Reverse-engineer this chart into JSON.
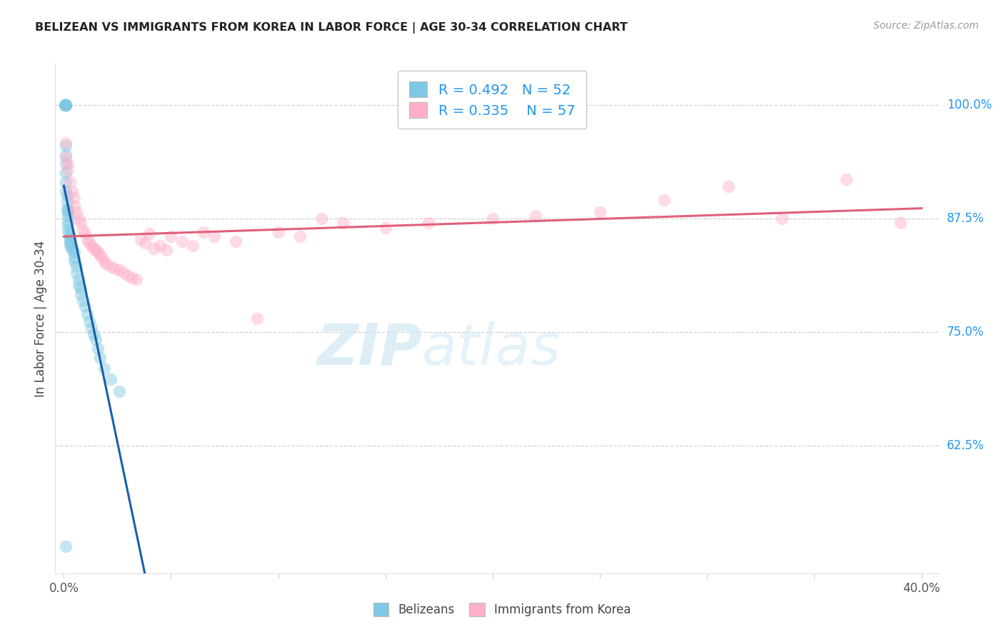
{
  "title": "BELIZEAN VS IMMIGRANTS FROM KOREA IN LABOR FORCE | AGE 30-34 CORRELATION CHART",
  "source": "Source: ZipAtlas.com",
  "ylabel": "In Labor Force | Age 30-34",
  "xlim": [
    -0.004,
    0.408
  ],
  "ylim": [
    0.485,
    1.045
  ],
  "xticks": [
    0.0,
    0.05,
    0.1,
    0.15,
    0.2,
    0.25,
    0.3,
    0.35,
    0.4
  ],
  "yticks": [
    0.625,
    0.75,
    0.875,
    1.0
  ],
  "yticklabels": [
    "62.5%",
    "75.0%",
    "87.5%",
    "100.0%"
  ],
  "R_belizean": 0.492,
  "N_belizean": 52,
  "R_korea": 0.335,
  "N_korea": 57,
  "blue_color": "#7ec8e3",
  "pink_color": "#ffb0c8",
  "blue_line_color": "#1a5fa8",
  "pink_line_color": "#e0607a",
  "accent_color": "#2196F3",
  "watermark_zip": "ZIP",
  "watermark_atlas": "atlas",
  "background_color": "#ffffff",
  "grid_color": "#cccccc",
  "belizean_x": [
    0.0005,
    0.0005,
    0.0005,
    0.001,
    0.001,
    0.001,
    0.001,
    0.001,
    0.001,
    0.001,
    0.001,
    0.001,
    0.001,
    0.0015,
    0.0015,
    0.0015,
    0.002,
    0.002,
    0.002,
    0.002,
    0.002,
    0.002,
    0.0025,
    0.003,
    0.003,
    0.003,
    0.003,
    0.003,
    0.004,
    0.004,
    0.005,
    0.005,
    0.005,
    0.006,
    0.006,
    0.007,
    0.007,
    0.008,
    0.008,
    0.009,
    0.01,
    0.011,
    0.012,
    0.013,
    0.014,
    0.015,
    0.016,
    0.017,
    0.019,
    0.022,
    0.026,
    0.001
  ],
  "belizean_y": [
    1.0,
    1.0,
    1.0,
    1.0,
    1.0,
    1.0,
    1.0,
    0.955,
    0.945,
    0.935,
    0.925,
    0.915,
    0.905,
    0.9,
    0.893,
    0.885,
    0.885,
    0.882,
    0.878,
    0.872,
    0.868,
    0.862,
    0.858,
    0.855,
    0.852,
    0.85,
    0.848,
    0.845,
    0.843,
    0.84,
    0.838,
    0.832,
    0.828,
    0.822,
    0.815,
    0.808,
    0.802,
    0.798,
    0.792,
    0.785,
    0.778,
    0.77,
    0.762,
    0.755,
    0.748,
    0.742,
    0.732,
    0.722,
    0.71,
    0.698,
    0.685,
    0.515
  ],
  "korea_x": [
    0.001,
    0.001,
    0.002,
    0.002,
    0.003,
    0.004,
    0.005,
    0.005,
    0.006,
    0.007,
    0.008,
    0.009,
    0.01,
    0.011,
    0.012,
    0.013,
    0.014,
    0.015,
    0.016,
    0.017,
    0.018,
    0.019,
    0.02,
    0.022,
    0.024,
    0.026,
    0.028,
    0.03,
    0.032,
    0.034,
    0.036,
    0.038,
    0.04,
    0.042,
    0.045,
    0.048,
    0.05,
    0.055,
    0.06,
    0.065,
    0.07,
    0.08,
    0.09,
    0.1,
    0.11,
    0.12,
    0.13,
    0.15,
    0.17,
    0.2,
    0.22,
    0.25,
    0.28,
    0.31,
    0.335,
    0.365,
    0.39
  ],
  "korea_y": [
    0.958,
    0.942,
    0.935,
    0.928,
    0.915,
    0.905,
    0.898,
    0.888,
    0.882,
    0.875,
    0.87,
    0.862,
    0.858,
    0.852,
    0.848,
    0.845,
    0.842,
    0.84,
    0.838,
    0.835,
    0.832,
    0.828,
    0.825,
    0.822,
    0.82,
    0.818,
    0.815,
    0.812,
    0.81,
    0.808,
    0.852,
    0.848,
    0.858,
    0.842,
    0.845,
    0.84,
    0.855,
    0.85,
    0.845,
    0.86,
    0.855,
    0.85,
    0.765,
    0.86,
    0.855,
    0.875,
    0.87,
    0.865,
    0.87,
    0.875,
    0.878,
    0.882,
    0.895,
    0.91,
    0.875,
    0.918,
    0.87
  ]
}
